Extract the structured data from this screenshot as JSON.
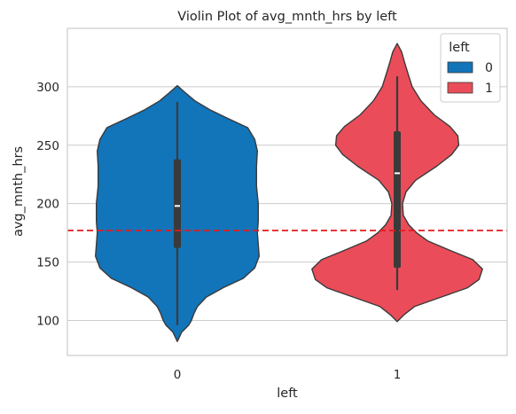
{
  "chart_data": {
    "type": "violin",
    "title": "Violin Plot of avg_mnth_hrs by left",
    "xlabel": "left",
    "ylabel": "avg_mnth_hrs",
    "categories": [
      "0",
      "1"
    ],
    "ylim": [
      70,
      350
    ],
    "yticks": [
      100,
      150,
      200,
      250,
      300
    ],
    "grid": true,
    "legend": {
      "title": "left",
      "placement": "top-right",
      "entries": [
        {
          "label": "0",
          "color": "#1274b9"
        },
        {
          "label": "1",
          "color": "#ea4d59"
        }
      ]
    },
    "reference_line": {
      "y": 177,
      "color": "#e31a1c",
      "style": "dashed"
    },
    "series": [
      {
        "category": "0",
        "color": "#1274b9",
        "min": 96,
        "q1": 162,
        "median": 198,
        "q3": 238,
        "max": 287,
        "kde_min": 82,
        "kde_max": 301,
        "density": [
          [
            82,
            0.0
          ],
          [
            90,
            0.05
          ],
          [
            96,
            0.13
          ],
          [
            100,
            0.16
          ],
          [
            106,
            0.19
          ],
          [
            112,
            0.23
          ],
          [
            120,
            0.33
          ],
          [
            128,
            0.52
          ],
          [
            136,
            0.75
          ],
          [
            145,
            0.88
          ],
          [
            155,
            0.93
          ],
          [
            165,
            0.92
          ],
          [
            175,
            0.91
          ],
          [
            185,
            0.92
          ],
          [
            200,
            0.92
          ],
          [
            215,
            0.9
          ],
          [
            232,
            0.9
          ],
          [
            245,
            0.91
          ],
          [
            255,
            0.88
          ],
          [
            265,
            0.8
          ],
          [
            272,
            0.6
          ],
          [
            280,
            0.38
          ],
          [
            288,
            0.2
          ],
          [
            295,
            0.09
          ],
          [
            301,
            0.0
          ]
        ]
      },
      {
        "category": "1",
        "color": "#ea4d59",
        "min": 126,
        "q1": 145,
        "median": 226,
        "q3": 262,
        "max": 309,
        "kde_min": 99,
        "kde_max": 337,
        "density": [
          [
            99,
            0.0
          ],
          [
            105,
            0.08
          ],
          [
            112,
            0.2
          ],
          [
            120,
            0.5
          ],
          [
            128,
            0.8
          ],
          [
            135,
            0.93
          ],
          [
            144,
            0.97
          ],
          [
            152,
            0.86
          ],
          [
            160,
            0.6
          ],
          [
            168,
            0.35
          ],
          [
            175,
            0.22
          ],
          [
            182,
            0.13
          ],
          [
            190,
            0.07
          ],
          [
            200,
            0.06
          ],
          [
            210,
            0.1
          ],
          [
            220,
            0.21
          ],
          [
            232,
            0.45
          ],
          [
            242,
            0.62
          ],
          [
            250,
            0.7
          ],
          [
            258,
            0.69
          ],
          [
            266,
            0.6
          ],
          [
            276,
            0.42
          ],
          [
            288,
            0.27
          ],
          [
            300,
            0.17
          ],
          [
            312,
            0.12
          ],
          [
            322,
            0.08
          ],
          [
            330,
            0.05
          ],
          [
            337,
            0.0
          ]
        ]
      }
    ]
  }
}
